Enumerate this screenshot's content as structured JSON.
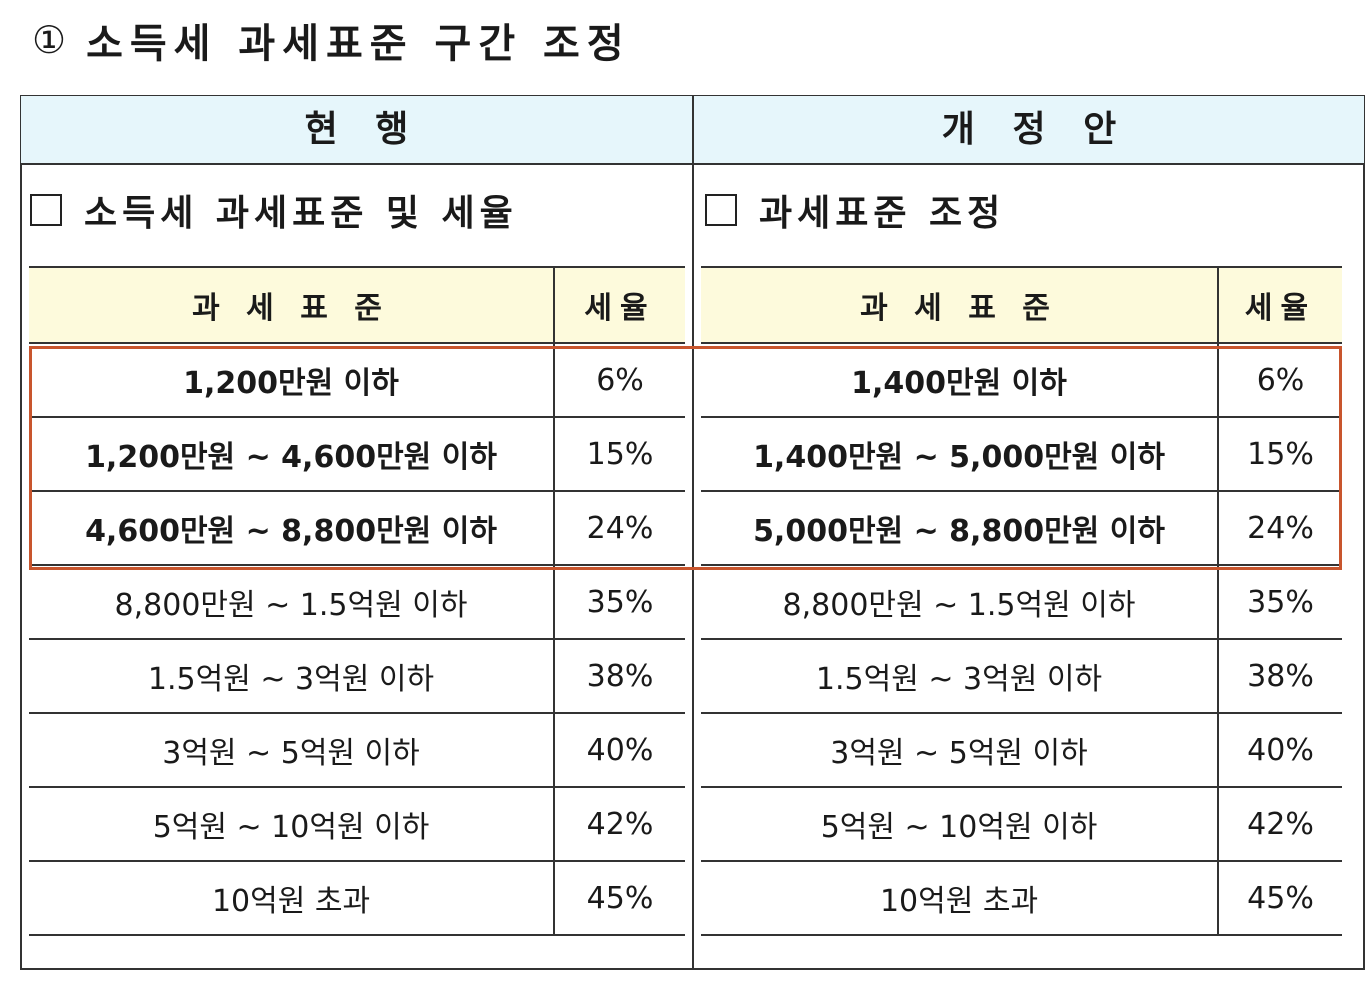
{
  "title": {
    "marker": "①",
    "text": "소득세 과세표준 구간 조정"
  },
  "columns": {
    "current": "현   행",
    "proposed": "개   정   안"
  },
  "current": {
    "section_label": "소득세 과세표준 및 세율",
    "headers": {
      "bracket": "과 세 표 준",
      "rate": "세율"
    },
    "rows": [
      {
        "bracket": "1,200만원 이하",
        "rate": "6%",
        "emphasis": true
      },
      {
        "bracket": "1,200만원 ~ 4,600만원 이하",
        "rate": "15%",
        "emphasis": true
      },
      {
        "bracket": "4,600만원 ~ 8,800만원 이하",
        "rate": "24%",
        "emphasis": true
      },
      {
        "bracket": "8,800만원 ~ 1.5억원 이하",
        "rate": "35%",
        "emphasis": false
      },
      {
        "bracket": "1.5억원 ~ 3억원 이하",
        "rate": "38%",
        "emphasis": false
      },
      {
        "bracket": "3억원 ~ 5억원 이하",
        "rate": "40%",
        "emphasis": false
      },
      {
        "bracket": "5억원 ~ 10억원 이하",
        "rate": "42%",
        "emphasis": false
      },
      {
        "bracket": "10억원 초과",
        "rate": "45%",
        "emphasis": false
      }
    ]
  },
  "proposed": {
    "section_label": "과세표준 조정",
    "headers": {
      "bracket": "과 세 표 준",
      "rate": "세율"
    },
    "rows": [
      {
        "bracket": "1,400만원 이하",
        "rate": "6%",
        "emphasis": true
      },
      {
        "bracket": "1,400만원 ~ 5,000만원 이하",
        "rate": "15%",
        "emphasis": true
      },
      {
        "bracket": "5,000만원 ~ 8,800만원 이하",
        "rate": "24%",
        "emphasis": true
      },
      {
        "bracket": "8,800만원 ~ 1.5억원 이하",
        "rate": "35%",
        "emphasis": false
      },
      {
        "bracket": "1.5억원 ~ 3억원 이하",
        "rate": "38%",
        "emphasis": false
      },
      {
        "bracket": "3억원 ~ 5억원 이하",
        "rate": "40%",
        "emphasis": false
      },
      {
        "bracket": "5억원 ~ 10억원 이하",
        "rate": "42%",
        "emphasis": false
      },
      {
        "bracket": "10억원 초과",
        "rate": "45%",
        "emphasis": false
      }
    ]
  },
  "colors": {
    "header_band": "#e6f6fb",
    "table_header": "#fdfadc",
    "highlight_border": "#c8552d"
  }
}
